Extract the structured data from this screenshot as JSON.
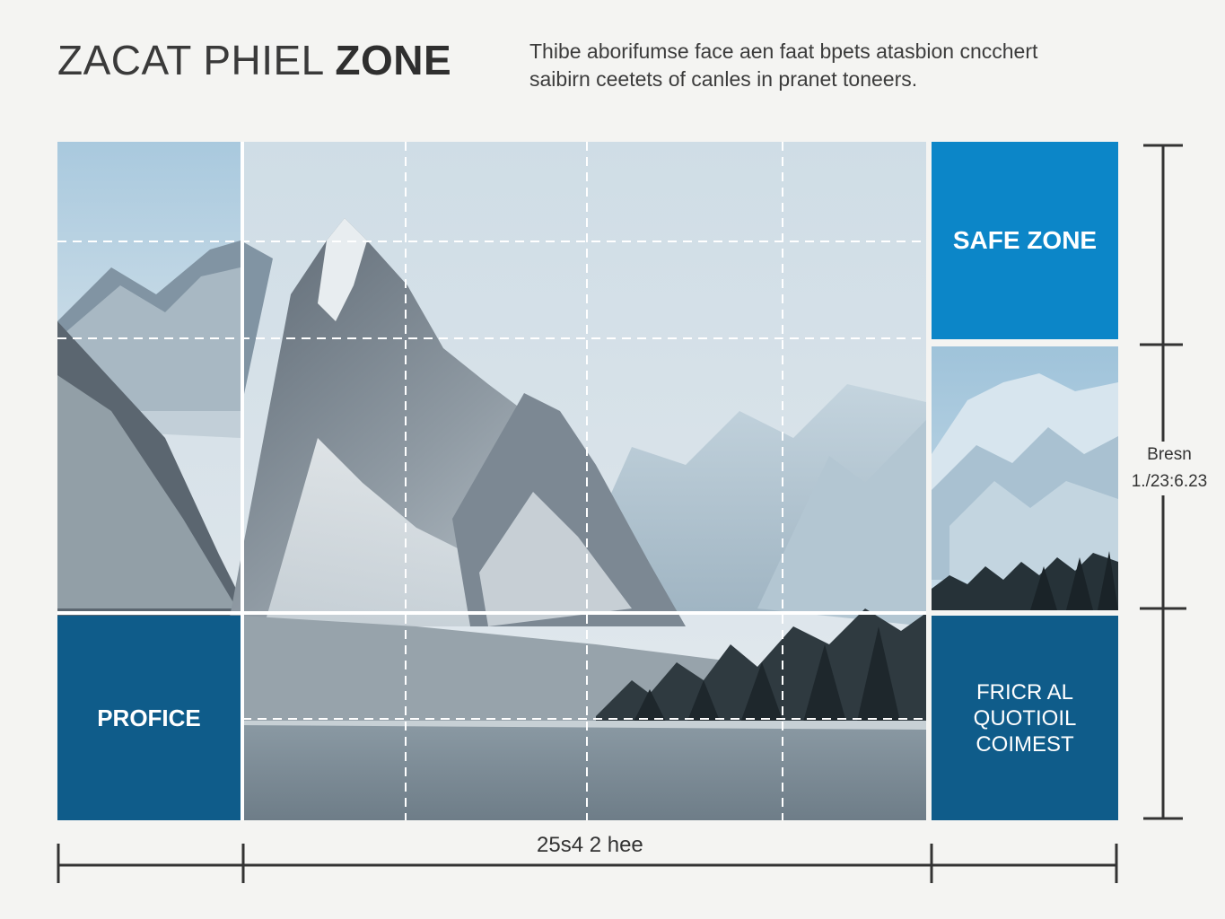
{
  "header": {
    "title_light": "ZACAT PHIEL ",
    "title_bold": "ZONE",
    "subtitle_line1": "Thibe aborifumse face aen faat bpets atasbion cncchert",
    "subtitle_line2": "saibirn ceetets of canles in pranet toneers."
  },
  "panels": {
    "safe_zone": "SAFE ZONE",
    "profice": "PROFICE",
    "quote_line1": "FRICR AL",
    "quote_line2": "QUOTIOIL",
    "quote_line3": "COIMEST"
  },
  "measurements": {
    "width_label": "25s4 2 hee",
    "height_label_line1": "Bresn",
    "height_label_line2": "1./23:6.23"
  },
  "colors": {
    "accent_blue": "#0c86c8",
    "dark_blue": "#0f5c8a",
    "background": "#f4f4f2"
  }
}
